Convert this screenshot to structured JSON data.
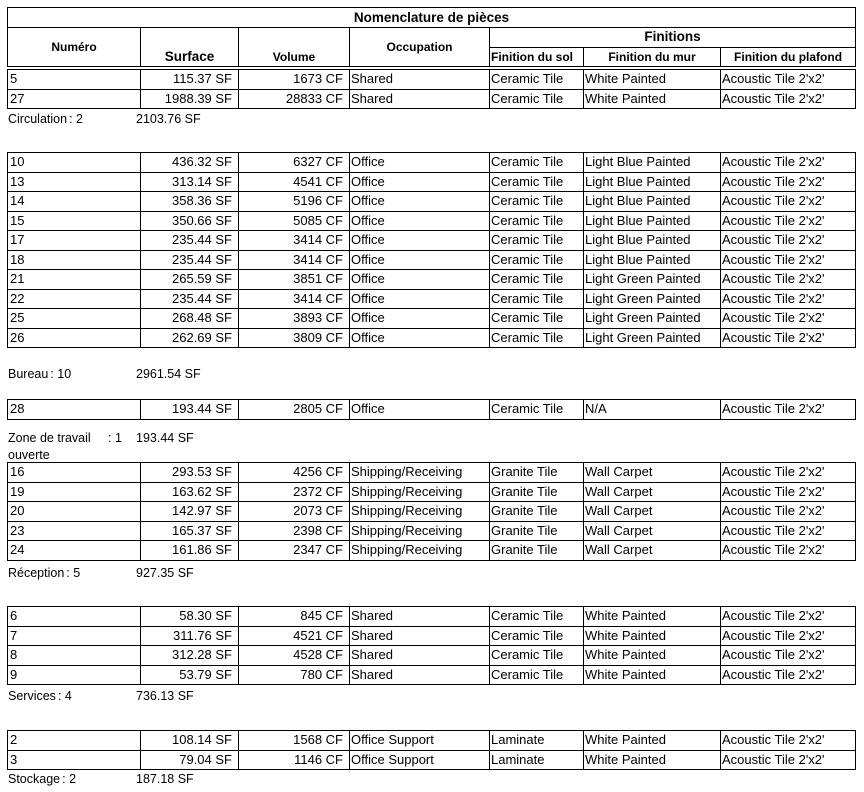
{
  "title": "Nomenclature de pièces",
  "headers": {
    "numero": "Numéro",
    "surface": "Surface",
    "volume": "Volume",
    "occupation": "Occupation",
    "finitions": "Finitions",
    "sol": "Finition du sol",
    "mur": "Finition du mur",
    "plafond": "Finition du plafond"
  },
  "groups": [
    {
      "label": "Circulation",
      "count": ": 2",
      "total": "2103.76 SF",
      "rows": [
        [
          "5",
          "115.37 SF",
          "1673 CF",
          "Shared",
          "Ceramic Tile",
          "White Painted",
          "Acoustic Tile 2'x2'"
        ],
        [
          "27",
          "1988.39 SF",
          "28833 CF",
          "Shared",
          "Ceramic Tile",
          "White Painted",
          "Acoustic Tile 2'x2'"
        ]
      ]
    },
    {
      "label": "Bureau",
      "count": ": 10",
      "total": "2961.54 SF",
      "rows": [
        [
          "10",
          "436.32 SF",
          "6327 CF",
          "Office",
          "Ceramic Tile",
          "Light Blue Painted",
          "Acoustic Tile 2'x2'"
        ],
        [
          "13",
          "313.14 SF",
          "4541 CF",
          "Office",
          "Ceramic Tile",
          "Light Blue Painted",
          "Acoustic Tile 2'x2'"
        ],
        [
          "14",
          "358.36 SF",
          "5196 CF",
          "Office",
          "Ceramic Tile",
          "Light Blue Painted",
          "Acoustic Tile 2'x2'"
        ],
        [
          "15",
          "350.66 SF",
          "5085 CF",
          "Office",
          "Ceramic Tile",
          "Light Blue Painted",
          "Acoustic Tile 2'x2'"
        ],
        [
          "17",
          "235.44 SF",
          "3414 CF",
          "Office",
          "Ceramic Tile",
          "Light Blue Painted",
          "Acoustic Tile 2'x2'"
        ],
        [
          "18",
          "235.44 SF",
          "3414 CF",
          "Office",
          "Ceramic Tile",
          "Light Blue Painted",
          "Acoustic Tile 2'x2'"
        ],
        [
          "21",
          "265.59 SF",
          "3851 CF",
          "Office",
          "Ceramic Tile",
          "Light Green Painted",
          "Acoustic Tile 2'x2'"
        ],
        [
          "22",
          "235.44 SF",
          "3414 CF",
          "Office",
          "Ceramic Tile",
          "Light Green Painted",
          "Acoustic Tile 2'x2'"
        ],
        [
          "25",
          "268.48 SF",
          "3893 CF",
          "Office",
          "Ceramic Tile",
          "Light Green Painted",
          "Acoustic Tile 2'x2'"
        ],
        [
          "26",
          "262.69 SF",
          "3809 CF",
          "Office",
          "Ceramic Tile",
          "Light Green Painted",
          "Acoustic Tile 2'x2'"
        ]
      ]
    },
    {
      "label": "Zone de travail ouverte",
      "count": ": 1",
      "total": "193.44 SF",
      "rows": [
        [
          "28",
          "193.44 SF",
          "2805 CF",
          "Office",
          "Ceramic Tile",
          "N/A",
          "Acoustic Tile 2'x2'"
        ]
      ]
    },
    {
      "label": "Réception",
      "count": ": 5",
      "total": "927.35 SF",
      "rows": [
        [
          "16",
          "293.53 SF",
          "4256 CF",
          "Shipping/Receiving",
          "Granite Tile",
          "Wall Carpet",
          "Acoustic Tile 2'x2'"
        ],
        [
          "19",
          "163.62 SF",
          "2372 CF",
          "Shipping/Receiving",
          "Granite Tile",
          "Wall Carpet",
          "Acoustic Tile 2'x2'"
        ],
        [
          "20",
          "142.97 SF",
          "2073 CF",
          "Shipping/Receiving",
          "Granite Tile",
          "Wall Carpet",
          "Acoustic Tile 2'x2'"
        ],
        [
          "23",
          "165.37 SF",
          "2398 CF",
          "Shipping/Receiving",
          "Granite Tile",
          "Wall Carpet",
          "Acoustic Tile 2'x2'"
        ],
        [
          "24",
          "161.86 SF",
          "2347 CF",
          "Shipping/Receiving",
          "Granite Tile",
          "Wall Carpet",
          "Acoustic Tile 2'x2'"
        ]
      ]
    },
    {
      "label": "Services",
      "count": ": 4",
      "total": "736.13 SF",
      "rows": [
        [
          "6",
          "58.30 SF",
          "845 CF",
          "Shared",
          "Ceramic Tile",
          "White Painted",
          "Acoustic Tile 2'x2'"
        ],
        [
          "7",
          "311.76 SF",
          "4521 CF",
          "Shared",
          "Ceramic Tile",
          "White Painted",
          "Acoustic Tile 2'x2'"
        ],
        [
          "8",
          "312.28 SF",
          "4528 CF",
          "Shared",
          "Ceramic Tile",
          "White Painted",
          "Acoustic Tile 2'x2'"
        ],
        [
          "9",
          "53.79 SF",
          "780 CF",
          "Shared",
          "Ceramic Tile",
          "White Painted",
          "Acoustic Tile 2'x2'"
        ]
      ]
    },
    {
      "label": "Stockage",
      "count": ": 2",
      "total": "187.18 SF",
      "rows": [
        [
          "2",
          "108.14 SF",
          "1568 CF",
          "Office Support",
          "Laminate",
          "White Painted",
          "Acoustic Tile 2'x2'"
        ],
        [
          "3",
          "79.04 SF",
          "1146 CF",
          "Office Support",
          "Laminate",
          "White Painted",
          "Acoustic Tile 2'x2'"
        ]
      ]
    }
  ]
}
